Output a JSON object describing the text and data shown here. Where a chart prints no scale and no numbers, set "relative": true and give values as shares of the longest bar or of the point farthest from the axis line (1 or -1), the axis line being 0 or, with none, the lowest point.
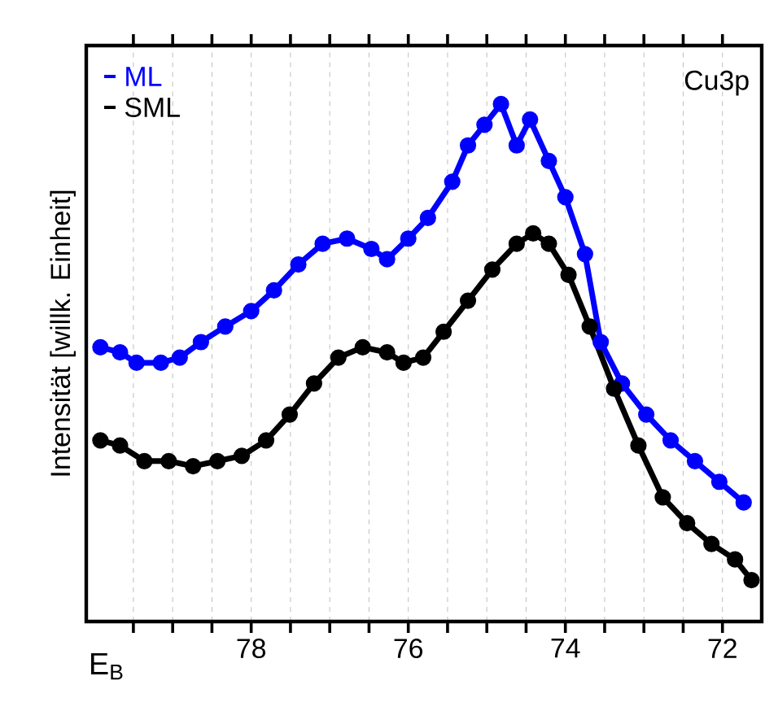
{
  "chart_data": {
    "type": "line",
    "relative": true,
    "xlabel": "E$_{B}$",
    "ylabel": "Intensität [willk. Einheit]",
    "annotations": [
      "Cu3p"
    ],
    "xlim": [
      80.1,
      71.5
    ],
    "xticks": [
      {
        "value": 79.5,
        "label": null
      },
      {
        "value": 79,
        "label": null
      },
      {
        "value": 78.5,
        "label": null
      },
      78,
      {
        "value": 77.5,
        "label": null
      },
      {
        "value": 77,
        "label": null
      },
      {
        "value": 76.5,
        "label": null
      },
      76,
      {
        "value": 75.5,
        "label": null
      },
      {
        "value": 75,
        "label": null
      },
      {
        "value": 74.5,
        "label": null
      },
      74,
      {
        "value": 73.5,
        "label": null
      },
      {
        "value": 73,
        "label": null
      },
      {
        "value": 72.5,
        "label": null
      },
      72
    ],
    "grid": "x",
    "legend": "top left",
    "marker": "circle",
    "line_style": "solid",
    "series": [
      {
        "name": "ML",
        "color": "#0000ff",
        "x": [
          79.92,
          79.67,
          79.46,
          79.15,
          78.91,
          78.64,
          78.33,
          78.0,
          77.71,
          77.4,
          77.09,
          76.78,
          76.47,
          76.27,
          76.0,
          75.75,
          75.44,
          75.24,
          75.03,
          74.82,
          74.62,
          74.45,
          74.21,
          74.0,
          73.75,
          73.55,
          73.28,
          72.97,
          72.66,
          72.35,
          72.04,
          71.73
        ],
        "values": [
          0.53,
          0.52,
          0.5,
          0.5,
          0.51,
          0.54,
          0.57,
          0.6,
          0.64,
          0.69,
          0.73,
          0.74,
          0.72,
          0.7,
          0.74,
          0.78,
          0.85,
          0.92,
          0.96,
          1.0,
          0.92,
          0.97,
          0.89,
          0.82,
          0.71,
          0.54,
          0.46,
          0.4,
          0.35,
          0.31,
          0.27,
          0.23
        ]
      },
      {
        "name": "SML",
        "color": "#000000",
        "x": [
          79.92,
          79.67,
          79.36,
          79.05,
          78.74,
          78.43,
          78.12,
          77.81,
          77.51,
          77.2,
          76.89,
          76.58,
          76.27,
          76.06,
          75.81,
          75.55,
          75.24,
          74.93,
          74.62,
          74.41,
          74.21,
          73.96,
          73.69,
          73.38,
          73.07,
          72.76,
          72.45,
          72.14,
          71.84,
          71.63
        ],
        "values": [
          0.35,
          0.34,
          0.31,
          0.31,
          0.3,
          0.31,
          0.32,
          0.35,
          0.4,
          0.46,
          0.51,
          0.53,
          0.52,
          0.5,
          0.51,
          0.56,
          0.62,
          0.68,
          0.73,
          0.75,
          0.73,
          0.67,
          0.57,
          0.45,
          0.34,
          0.24,
          0.19,
          0.15,
          0.12,
          0.08
        ]
      }
    ]
  }
}
